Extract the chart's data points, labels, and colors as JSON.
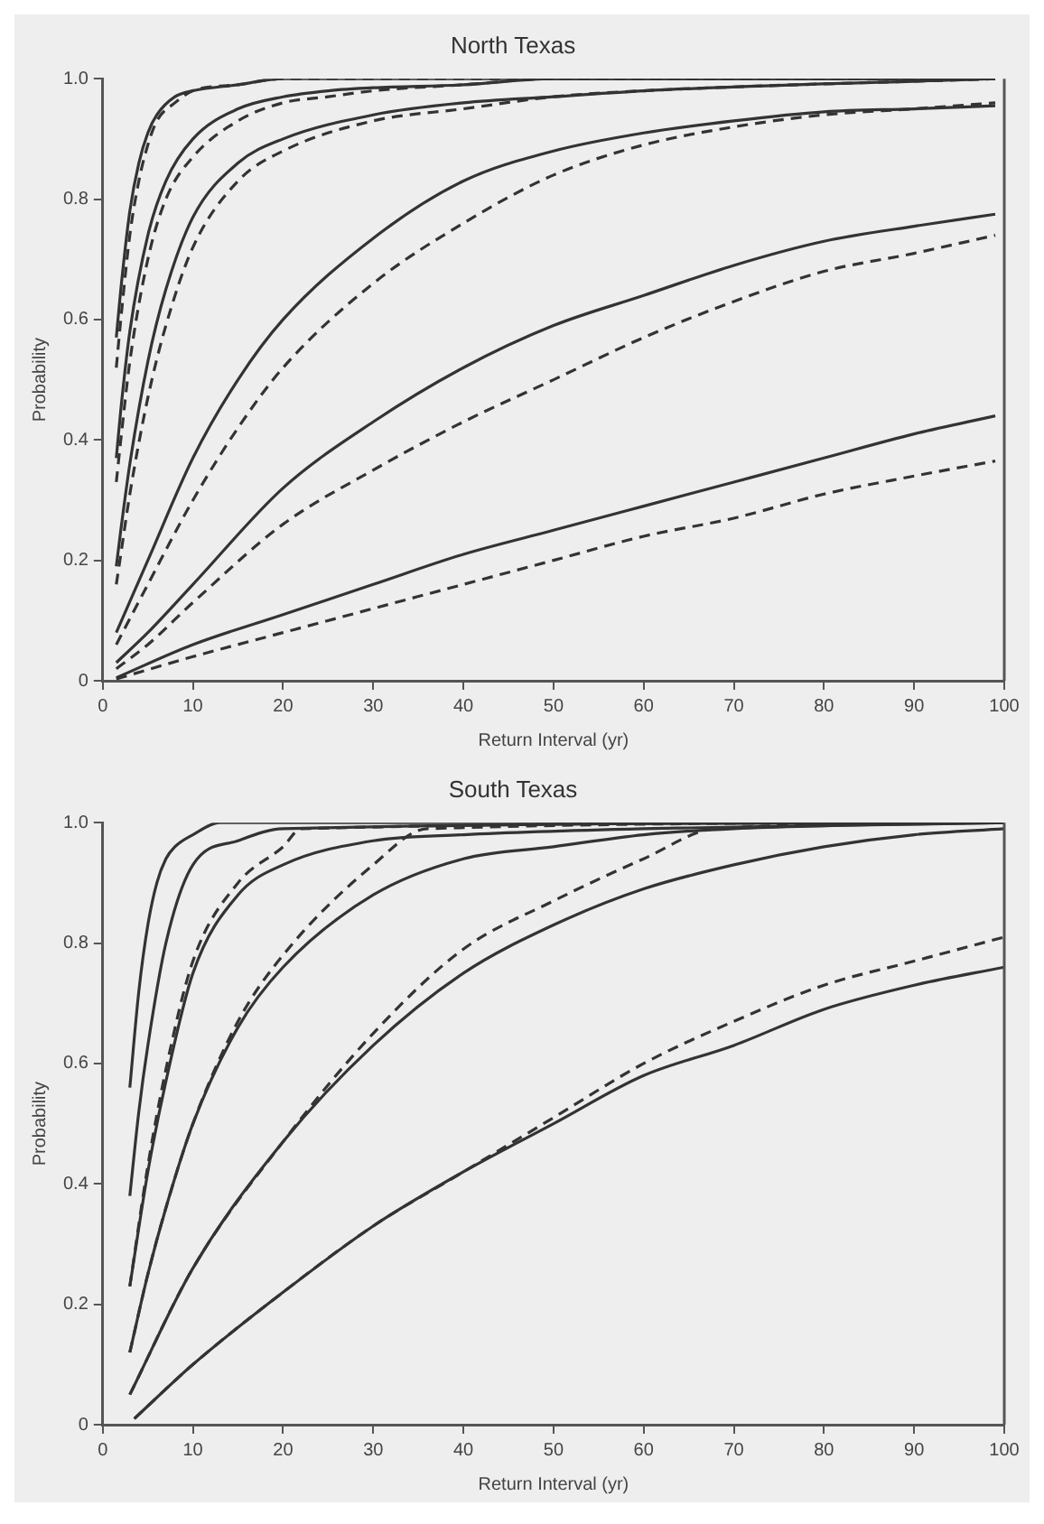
{
  "chart_data": [
    {
      "type": "line",
      "title": "North Texas",
      "xlabel": "Return Interval (yr)",
      "ylabel": "Probability",
      "xlim": [
        0,
        100
      ],
      "ylim": [
        0,
        1
      ],
      "xticks": [
        0,
        10,
        20,
        30,
        40,
        50,
        60,
        70,
        80,
        90,
        100
      ],
      "yticks": [
        0,
        0.2,
        0.4,
        0.6,
        0.8,
        {
          "value": 1,
          "label": "1.0"
        }
      ],
      "grid": false,
      "legend": false,
      "marker": "none",
      "series": [
        {
          "color": "#333333",
          "line_style": "solid",
          "x": [
            1.5,
            2,
            3,
            4,
            5,
            6,
            8,
            10,
            15,
            20,
            99
          ],
          "values": [
            0.57,
            0.65,
            0.78,
            0.86,
            0.91,
            0.94,
            0.97,
            0.98,
            0.99,
            1,
            1
          ]
        },
        {
          "color": "#333333",
          "line_style": "dashed",
          "x": [
            1.5,
            2,
            3,
            4,
            5,
            6,
            8,
            10,
            15,
            20,
            99
          ],
          "values": [
            0.52,
            0.6,
            0.74,
            0.83,
            0.89,
            0.93,
            0.96,
            0.98,
            0.99,
            1,
            1
          ]
        },
        {
          "color": "#333333",
          "line_style": "solid",
          "x": [
            1.5,
            2,
            3,
            5,
            7,
            10,
            15,
            20,
            25,
            30,
            40,
            50,
            99
          ],
          "values": [
            0.37,
            0.45,
            0.58,
            0.74,
            0.83,
            0.9,
            0.95,
            0.97,
            0.98,
            0.985,
            0.99,
            1,
            1
          ]
        },
        {
          "color": "#333333",
          "line_style": "dashed",
          "x": [
            1.5,
            2,
            3,
            5,
            7,
            10,
            15,
            20,
            25,
            30,
            40,
            50,
            99
          ],
          "values": [
            0.33,
            0.4,
            0.53,
            0.7,
            0.8,
            0.87,
            0.93,
            0.96,
            0.97,
            0.98,
            0.99,
            1,
            1
          ]
        },
        {
          "color": "#333333",
          "line_style": "solid",
          "x": [
            1.5,
            2,
            3,
            5,
            7,
            10,
            15,
            20,
            30,
            40,
            50,
            60,
            99
          ],
          "values": [
            0.19,
            0.25,
            0.36,
            0.53,
            0.65,
            0.77,
            0.86,
            0.9,
            0.94,
            0.96,
            0.97,
            0.98,
            1
          ]
        },
        {
          "color": "#333333",
          "line_style": "dashed",
          "x": [
            1.5,
            2,
            3,
            5,
            7,
            10,
            15,
            20,
            30,
            40,
            50,
            60,
            99
          ],
          "values": [
            0.16,
            0.21,
            0.31,
            0.47,
            0.59,
            0.72,
            0.83,
            0.88,
            0.93,
            0.95,
            0.97,
            0.98,
            1
          ]
        },
        {
          "color": "#333333",
          "line_style": "solid",
          "x": [
            1.5,
            5,
            10,
            15,
            20,
            30,
            40,
            50,
            60,
            70,
            80,
            90,
            99
          ],
          "values": [
            0.08,
            0.2,
            0.37,
            0.5,
            0.6,
            0.735,
            0.83,
            0.88,
            0.91,
            0.93,
            0.945,
            0.95,
            0.955
          ]
        },
        {
          "color": "#333333",
          "line_style": "dashed",
          "x": [
            1.5,
            5,
            10,
            15,
            20,
            30,
            40,
            50,
            60,
            70,
            80,
            90,
            99
          ],
          "values": [
            0.06,
            0.16,
            0.3,
            0.42,
            0.52,
            0.66,
            0.76,
            0.84,
            0.89,
            0.92,
            0.94,
            0.95,
            0.96
          ]
        },
        {
          "color": "#333333",
          "line_style": "solid",
          "x": [
            1.5,
            5,
            10,
            20,
            30,
            40,
            50,
            60,
            70,
            80,
            90,
            99
          ],
          "values": [
            0.03,
            0.08,
            0.16,
            0.32,
            0.43,
            0.52,
            0.59,
            0.64,
            0.69,
            0.73,
            0.755,
            0.775
          ]
        },
        {
          "color": "#333333",
          "line_style": "dashed",
          "x": [
            1.5,
            5,
            10,
            20,
            30,
            40,
            50,
            60,
            70,
            80,
            90,
            99
          ],
          "values": [
            0.02,
            0.06,
            0.13,
            0.26,
            0.35,
            0.43,
            0.5,
            0.57,
            0.63,
            0.68,
            0.71,
            0.74
          ]
        },
        {
          "color": "#333333",
          "line_style": "solid",
          "x": [
            1.5,
            10,
            20,
            30,
            40,
            50,
            60,
            70,
            80,
            90,
            99
          ],
          "values": [
            0.005,
            0.06,
            0.11,
            0.16,
            0.21,
            0.25,
            0.29,
            0.33,
            0.37,
            0.41,
            0.44
          ]
        },
        {
          "color": "#333333",
          "line_style": "dashed",
          "x": [
            1.5,
            10,
            20,
            30,
            40,
            50,
            60,
            70,
            80,
            90,
            99
          ],
          "values": [
            0.003,
            0.04,
            0.08,
            0.12,
            0.16,
            0.2,
            0.24,
            0.27,
            0.31,
            0.34,
            0.365
          ]
        }
      ]
    },
    {
      "type": "line",
      "title": "South Texas",
      "xlabel": "Return Interval (yr)",
      "ylabel": "Probability",
      "xlim": [
        0,
        100
      ],
      "ylim": [
        0,
        1
      ],
      "xticks": [
        0,
        10,
        20,
        30,
        40,
        50,
        60,
        70,
        80,
        90,
        100
      ],
      "yticks": [
        0,
        0.2,
        0.4,
        0.6,
        0.8,
        {
          "value": 1,
          "label": "1.0"
        }
      ],
      "grid": false,
      "legend": false,
      "marker": "none",
      "series": [
        {
          "color": "#333333",
          "line_style": "solid",
          "x": [
            3,
            4,
            5,
            6,
            7,
            8,
            10,
            13,
            100
          ],
          "values": [
            0.56,
            0.72,
            0.83,
            0.9,
            0.94,
            0.96,
            0.98,
            1,
            1
          ]
        },
        {
          "color": "#333333",
          "line_style": "solid",
          "x": [
            3,
            4,
            5,
            7,
            10,
            15,
            20,
            100
          ],
          "values": [
            0.38,
            0.52,
            0.63,
            0.8,
            0.93,
            0.97,
            0.99,
            1
          ]
        },
        {
          "color": "#333333",
          "line_style": "solid",
          "x": [
            3,
            5,
            7,
            10,
            15,
            20,
            30,
            40,
            60,
            100
          ],
          "values": [
            0.23,
            0.42,
            0.57,
            0.75,
            0.88,
            0.93,
            0.97,
            0.98,
            0.99,
            1
          ]
        },
        {
          "color": "#333333",
          "line_style": "dashed",
          "x": [
            3,
            5,
            7,
            10,
            15,
            20,
            22,
            100
          ],
          "values": [
            0.23,
            0.43,
            0.59,
            0.77,
            0.9,
            0.96,
            0.99,
            1
          ]
        },
        {
          "color": "#333333",
          "line_style": "solid",
          "x": [
            3,
            5,
            7,
            10,
            15,
            20,
            30,
            40,
            50,
            60,
            70,
            100
          ],
          "values": [
            0.12,
            0.25,
            0.36,
            0.5,
            0.66,
            0.76,
            0.88,
            0.94,
            0.96,
            0.98,
            0.99,
            1
          ]
        },
        {
          "color": "#333333",
          "line_style": "dashed",
          "x": [
            3,
            5,
            7,
            10,
            15,
            20,
            30,
            36,
            100
          ],
          "values": [
            0.12,
            0.25,
            0.36,
            0.5,
            0.67,
            0.78,
            0.93,
            0.99,
            1
          ]
        },
        {
          "color": "#333333",
          "line_style": "solid",
          "x": [
            3,
            10,
            20,
            30,
            40,
            50,
            60,
            70,
            80,
            90,
            100
          ],
          "values": [
            0.05,
            0.26,
            0.47,
            0.63,
            0.75,
            0.83,
            0.89,
            0.93,
            0.96,
            0.98,
            0.99
          ]
        },
        {
          "color": "#333333",
          "line_style": "dashed",
          "x": [
            3,
            10,
            20,
            30,
            40,
            50,
            60,
            68,
            100
          ],
          "values": [
            0.05,
            0.26,
            0.47,
            0.65,
            0.79,
            0.87,
            0.94,
            0.99,
            1
          ]
        },
        {
          "color": "#333333",
          "line_style": "solid",
          "x": [
            3.5,
            10,
            20,
            30,
            40,
            50,
            60,
            70,
            80,
            90,
            100
          ],
          "values": [
            0.01,
            0.1,
            0.22,
            0.33,
            0.42,
            0.5,
            0.58,
            0.63,
            0.69,
            0.73,
            0.76
          ]
        },
        {
          "color": "#333333",
          "line_style": "dashed",
          "x": [
            3.5,
            10,
            20,
            30,
            40,
            50,
            60,
            70,
            80,
            90,
            100
          ],
          "values": [
            0.01,
            0.1,
            0.22,
            0.33,
            0.42,
            0.51,
            0.6,
            0.67,
            0.73,
            0.77,
            0.81
          ]
        }
      ]
    }
  ]
}
